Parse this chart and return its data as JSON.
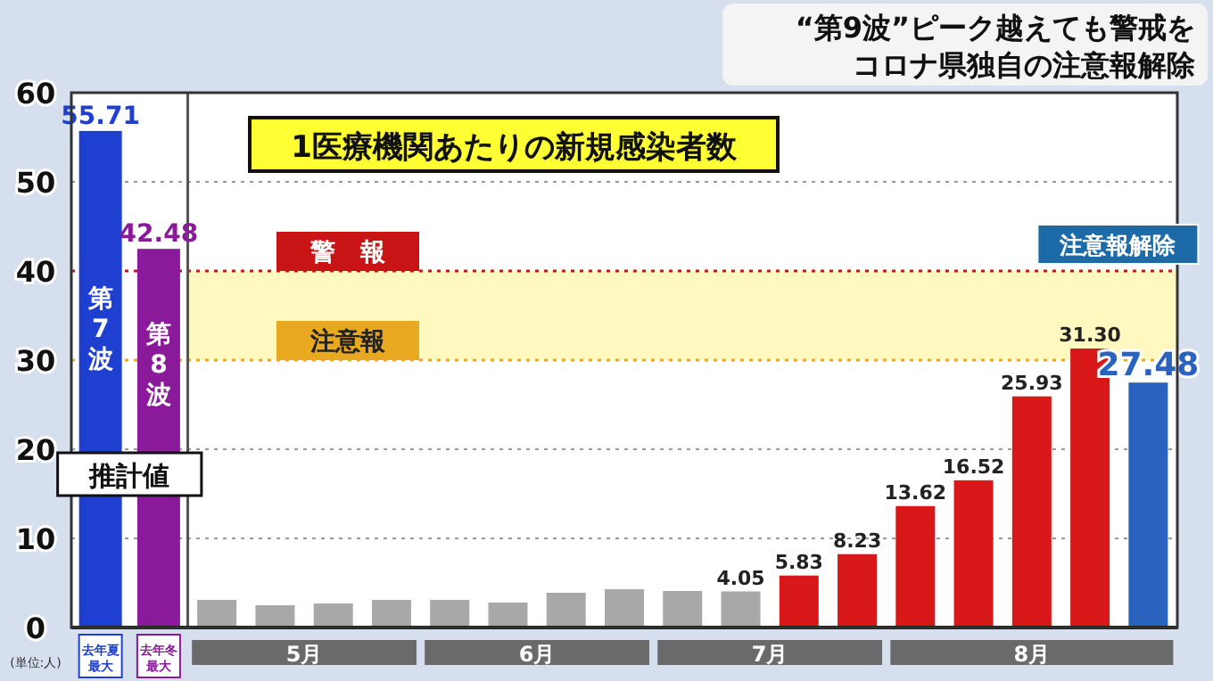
{
  "chart_data": {
    "type": "bar",
    "title": "1医療機関あたりの新規感染者数",
    "subtitle": "“第9波”ピーク越えても警戒をコロナ県独自の注意報解除",
    "categories": [
      "去年夏最大",
      "去年冬最大",
      null,
      null,
      null,
      null,
      null,
      null,
      null,
      null,
      null,
      null,
      null,
      null,
      null,
      null,
      null,
      null,
      null
    ],
    "values": [
      55.71,
      42.48,
      3.1,
      2.5,
      2.7,
      3.1,
      3.1,
      2.8,
      3.9,
      4.3,
      4.1,
      4.05,
      5.83,
      8.23,
      13.62,
      16.52,
      25.93,
      31.3,
      27.48
    ],
    "colors": [
      "#1f3fd0",
      "#8a1a9a",
      "#a8a8a8",
      "#a8a8a8",
      "#a8a8a8",
      "#a8a8a8",
      "#a8a8a8",
      "#a8a8a8",
      "#a8a8a8",
      "#a8a8a8",
      "#a8a8a8",
      "#a8a8a8",
      "#d81818",
      "#d81818",
      "#d81818",
      "#d81818",
      "#d81818",
      "#d81818",
      "#2a62c0"
    ],
    "value_labels": [
      "55.71",
      "42.48",
      null,
      null,
      null,
      null,
      null,
      null,
      null,
      null,
      null,
      "4.05",
      "5.83",
      "8.23",
      "13.62",
      "16.52",
      "25.93",
      "31.30",
      "27.48"
    ],
    "ylim": [
      0,
      60
    ],
    "yticks": [
      0,
      10,
      20,
      30,
      40,
      50,
      60
    ],
    "grid": "y",
    "ref_lines": [
      {
        "axis": "y",
        "value": 40,
        "label": "警　報",
        "color": "#c81414",
        "line_style": "dotted"
      },
      {
        "axis": "y",
        "value": 30,
        "label": "注意報",
        "color": "#e8a820",
        "line_style": "dotted"
      }
    ],
    "bands": [
      {
        "axis": "y",
        "from": 30,
        "to": 40,
        "color": "#fff9c0"
      }
    ],
    "annotations": [
      "5月",
      "6月",
      "7月",
      "8月",
      "(単位:人)",
      "推計値",
      "注意報解除",
      "第7波",
      "第8波"
    ]
  }
}
